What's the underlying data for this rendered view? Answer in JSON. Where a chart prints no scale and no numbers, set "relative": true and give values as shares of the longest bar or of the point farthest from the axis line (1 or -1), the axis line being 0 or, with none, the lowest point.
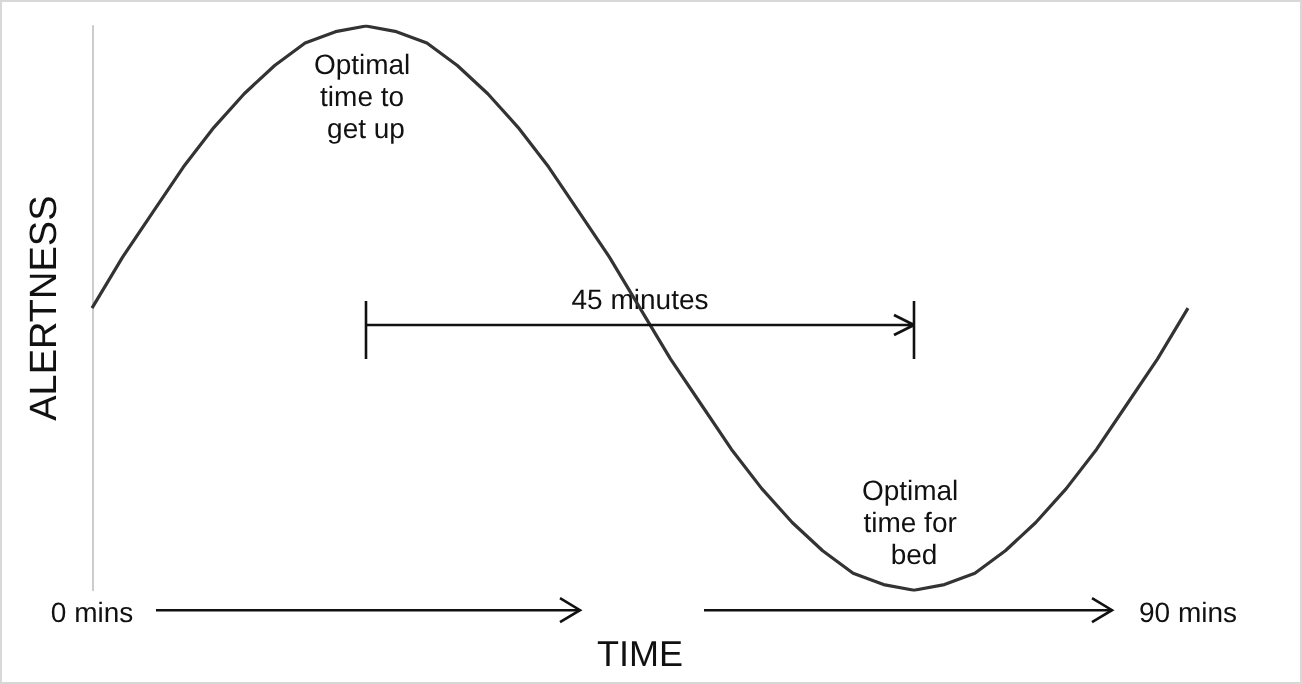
{
  "chart_data": {
    "type": "line",
    "relative": true,
    "xlabel": "TIME",
    "ylabel": "ALERTNESS",
    "x": [
      0,
      2.5,
      5,
      7.5,
      10,
      12.5,
      15,
      17.5,
      20,
      22.5,
      25,
      27.5,
      30,
      32.5,
      35,
      37.5,
      40,
      42.5,
      45,
      47.5,
      50,
      52.5,
      55,
      57.5,
      60,
      62.5,
      65,
      67.5,
      70,
      72.5,
      75,
      77.5,
      80,
      82.5,
      85,
      87.5,
      90
    ],
    "series": [
      {
        "color": "#333333",
        "values": [
          0.5,
          0.59,
          0.67,
          0.75,
          0.82,
          0.88,
          0.93,
          0.97,
          0.99,
          1,
          0.99,
          0.97,
          0.93,
          0.88,
          0.82,
          0.75,
          0.67,
          0.59,
          0.5,
          0.41,
          0.33,
          0.25,
          0.18,
          0.12,
          0.07,
          0.03,
          0.01,
          0,
          0.01,
          0.03,
          0.07,
          0.12,
          0.18,
          0.25,
          0.33,
          0.41,
          0.5
        ]
      }
    ],
    "xlim": [
      0,
      90
    ],
    "xticks": [
      {
        "value": 0,
        "label": "0 mins"
      },
      {
        "value": 90,
        "label": "90 mins"
      }
    ],
    "grid": false,
    "annotations": [
      {
        "text": "Optimal time to get up",
        "x": 22.5,
        "y": 1
      },
      {
        "text": "Optimal time for bed",
        "x": 67.5,
        "y": 0
      },
      {
        "text": "45 minutes",
        "x": 45,
        "y": 0.47
      }
    ]
  }
}
